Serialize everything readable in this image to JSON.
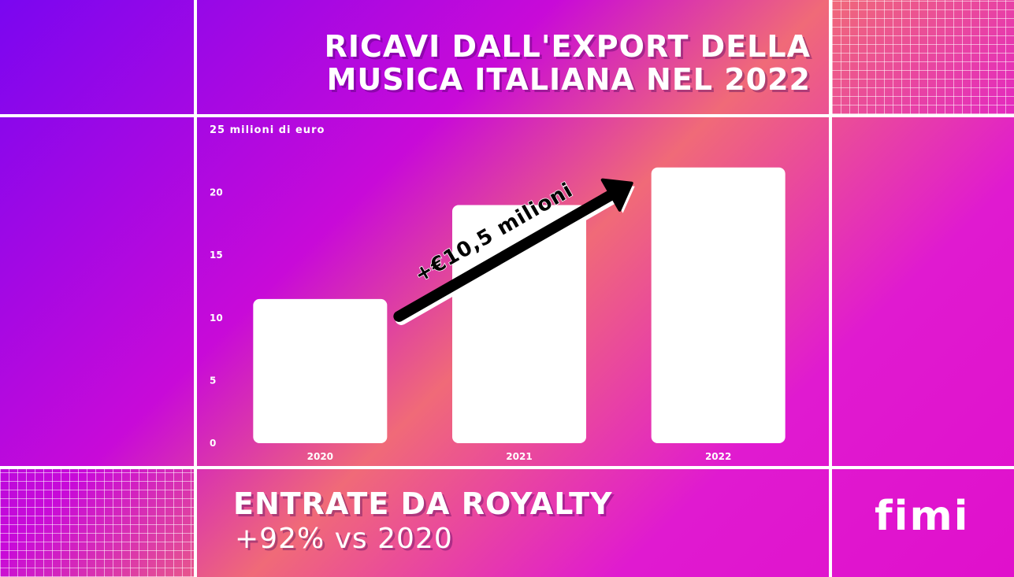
{
  "header": {
    "title_line1": "RICAVI DALL'EXPORT DELLA",
    "title_line2": "MUSICA ITALIANA NEL 2022"
  },
  "footer": {
    "title": "ENTRATE DA ROYALTY",
    "subtitle": "+92% vs 2020",
    "logo": "fimi"
  },
  "chart_data": {
    "type": "bar",
    "categories": [
      "2020",
      "2021",
      "2022"
    ],
    "values": [
      11.5,
      19,
      22
    ],
    "ylabel": "milioni di euro",
    "ylim": [
      0,
      25
    ],
    "yticks": [
      0,
      5,
      10,
      15,
      20,
      25
    ],
    "grid": false,
    "annotation": "+€10,5 milioni",
    "bar_color": "#ffffff"
  }
}
